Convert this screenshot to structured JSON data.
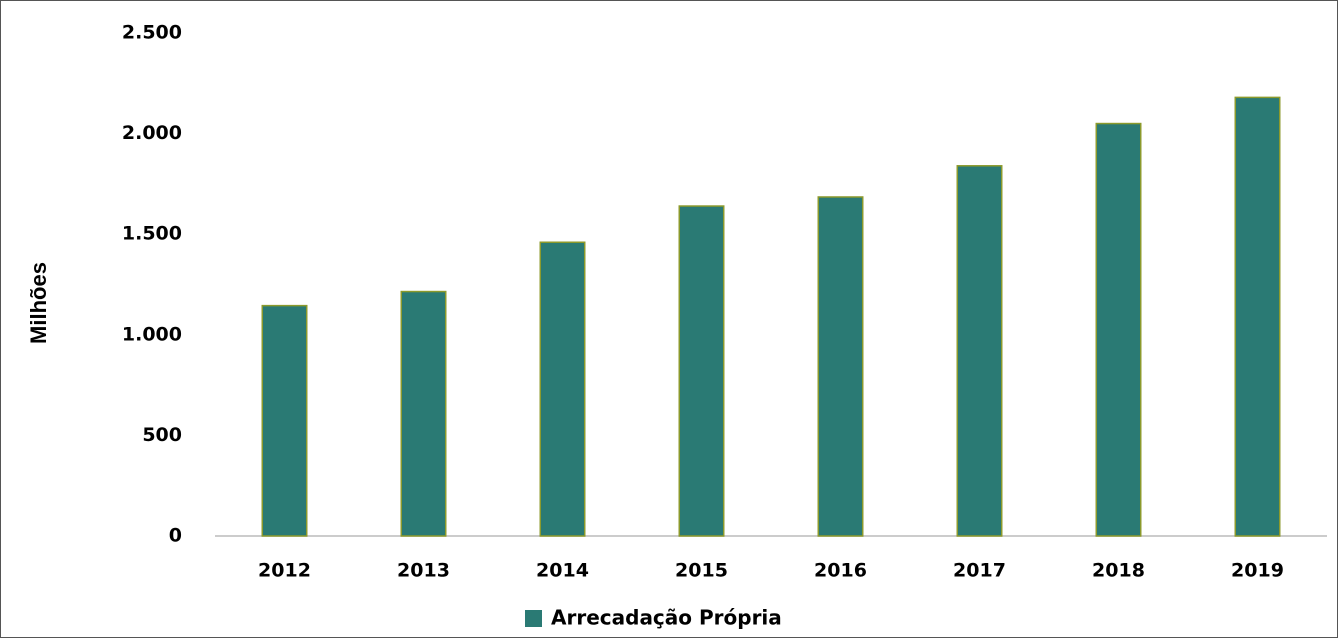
{
  "chart_data": {
    "type": "bar",
    "ylabel": "Milhões",
    "categories": [
      "2012",
      "2013",
      "2014",
      "2015",
      "2016",
      "2017",
      "2018",
      "2019"
    ],
    "series": [
      {
        "name": "Arrecadação Própria",
        "color": "#2a7a74",
        "values": [
          1145,
          1215,
          1460,
          1640,
          1685,
          1840,
          2050,
          2180
        ]
      }
    ],
    "ylim": [
      0,
      2500
    ],
    "yticks": [
      0,
      500,
      {
        "value": 1000,
        "label": "1.000"
      },
      {
        "value": 1500,
        "label": "1.500"
      },
      {
        "value": 2000,
        "label": "2.000"
      },
      {
        "value": 2500,
        "label": "2.500"
      }
    ],
    "grid": false,
    "legend": "bottom"
  }
}
